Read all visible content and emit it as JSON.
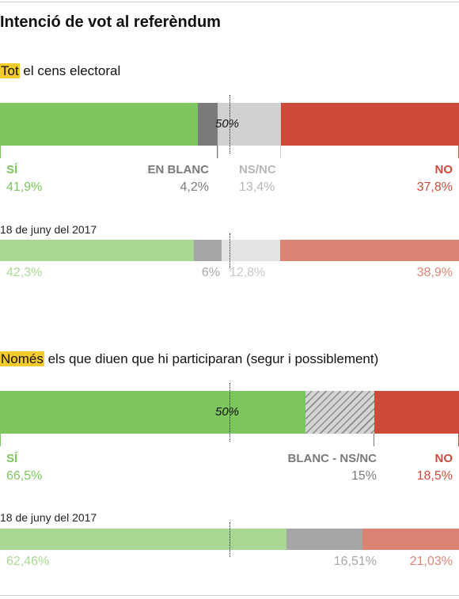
{
  "title": "Intenció de vot al referèndum",
  "colors": {
    "si": "#7dc55d",
    "si_light": "#a8d994",
    "blanc": "#7a7a7a",
    "blanc_light": "#a6a6a6",
    "nsnc": "#d1d1d1",
    "nsnc_light": "#e3e3e3",
    "no": "#cd4a38",
    "no_light": "#dc8474"
  },
  "chart_data": [
    {
      "type": "bar",
      "stacked": true,
      "subtitle_highlight": "Tot",
      "subtitle_rest": " el cens electoral",
      "midpoint_label": "50%",
      "labels": {
        "si": "SÍ",
        "blanc": "EN BLANC",
        "nsnc": "NS/NC",
        "no": "NO"
      },
      "current": {
        "si": 41.9,
        "blanc": 4.2,
        "nsnc": 13.4,
        "no": 37.8,
        "si_text": "41,9%",
        "blanc_text": "4,2%",
        "nsnc_text": "13,4%",
        "no_text": "37,8%"
      },
      "previous_date": "18 de juny del 2017",
      "previous": {
        "si": 42.3,
        "blanc": 6,
        "nsnc": 12.8,
        "no": 38.9,
        "si_text": "42,3%",
        "blanc_text": "6%",
        "nsnc_text": "12,8%",
        "no_text": "38,9%"
      }
    },
    {
      "type": "bar",
      "stacked": true,
      "subtitle_highlight": "Només",
      "subtitle_rest": " els que diuen que hi participaran (segur i possiblement)",
      "midpoint_label": "50%",
      "labels": {
        "si": "SÍ",
        "blanc_nsnc": "BLANC - NS/NC",
        "no": "NO"
      },
      "current": {
        "si": 66.5,
        "blanc_nsnc": 15,
        "no": 18.5,
        "si_text": "66,5%",
        "blanc_nsnc_text": "15%",
        "no_text": "18,5%"
      },
      "previous_date": "18 de juny del 2017",
      "previous": {
        "si": 62.46,
        "blanc_nsnc": 16.51,
        "no": 21.03,
        "si_text": "62,46%",
        "blanc_nsnc_text": "16,51%",
        "no_text": "21,03%"
      }
    }
  ]
}
